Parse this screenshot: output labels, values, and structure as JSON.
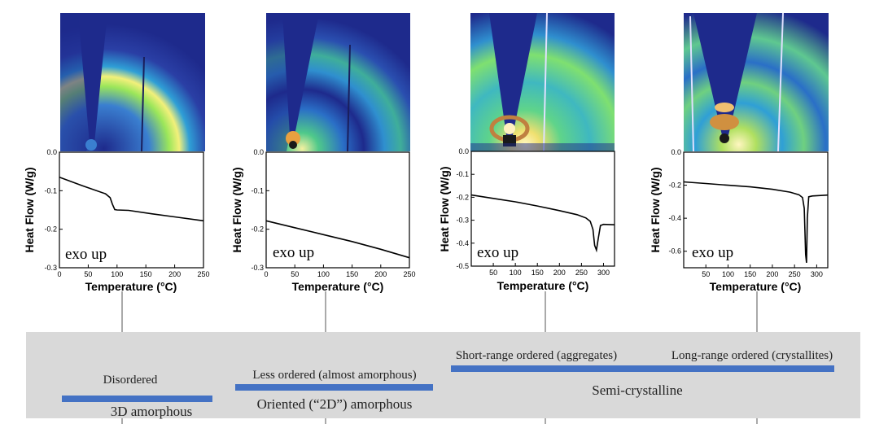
{
  "chart_data": [
    {
      "type": "line",
      "panel": "1",
      "xlabel": "Temperature (°C)",
      "ylabel": "Heat Flow (W/g)",
      "xlim": [
        0,
        250
      ],
      "ylim": [
        -0.3,
        0.0
      ],
      "xticks": [
        "0",
        "50",
        "100",
        "150",
        "200",
        "250"
      ],
      "yticks": [
        "0.0",
        "-0.1",
        "-0.2",
        "-0.3"
      ],
      "annotation": "exo up",
      "x": [
        0,
        40,
        80,
        88,
        92,
        96,
        100,
        120,
        160,
        200,
        250
      ],
      "y": [
        -0.065,
        -0.087,
        -0.108,
        -0.118,
        -0.135,
        -0.149,
        -0.15,
        -0.151,
        -0.16,
        -0.168,
        -0.178
      ]
    },
    {
      "type": "line",
      "panel": "2",
      "xlabel": "Temperature (°C)",
      "ylabel": "Heat Flow (W/g)",
      "xlim": [
        0,
        250
      ],
      "ylim": [
        -0.3,
        0.0
      ],
      "xticks": [
        "0",
        "50",
        "100",
        "150",
        "200",
        "250"
      ],
      "yticks": [
        "0.0",
        "-0.1",
        "-0.2",
        "-0.3"
      ],
      "annotation": "exo up",
      "x": [
        0,
        50,
        100,
        150,
        200,
        250
      ],
      "y": [
        -0.178,
        -0.196,
        -0.214,
        -0.232,
        -0.252,
        -0.274
      ]
    },
    {
      "type": "line",
      "panel": "3",
      "xlabel": "Temperature (°C)",
      "ylabel": "Heat Flow (W/g)",
      "xlim": [
        0,
        325
      ],
      "ylim": [
        -0.5,
        0.0
      ],
      "xticks": [
        "50",
        "100",
        "150",
        "200",
        "250",
        "300"
      ],
      "yticks": [
        "0.0",
        "-0.1",
        "-0.2",
        "-0.3",
        "-0.4",
        "-0.5"
      ],
      "annotation": "exo up",
      "x": [
        0,
        50,
        100,
        150,
        200,
        240,
        260,
        270,
        276,
        280,
        284,
        288,
        293,
        300,
        325
      ],
      "y": [
        -0.19,
        -0.205,
        -0.22,
        -0.238,
        -0.258,
        -0.276,
        -0.29,
        -0.305,
        -0.34,
        -0.41,
        -0.43,
        -0.38,
        -0.323,
        -0.318,
        -0.32
      ]
    },
    {
      "type": "line",
      "panel": "4",
      "xlabel": "Temperature (°C)",
      "ylabel": "Heat Flow (W/g)",
      "xlim": [
        0,
        325
      ],
      "ylim": [
        -0.7,
        0.0
      ],
      "xticks": [
        "50",
        "100",
        "150",
        "200",
        "250",
        "300"
      ],
      "yticks": [
        "0.0",
        "-0.2",
        "-0.4",
        "-0.6"
      ],
      "annotation": "exo up",
      "x": [
        0,
        50,
        100,
        150,
        200,
        240,
        260,
        268,
        272,
        275,
        277,
        279,
        282,
        290,
        325
      ],
      "y": [
        -0.18,
        -0.19,
        -0.2,
        -0.21,
        -0.225,
        -0.242,
        -0.258,
        -0.275,
        -0.34,
        -0.62,
        -0.67,
        -0.4,
        -0.27,
        -0.265,
        -0.26
      ]
    }
  ],
  "ordering_scale": {
    "labels": {
      "disordered": "Disordered",
      "amorphous_3d": "3D amorphous",
      "less_ordered": "Less ordered (almost amorphous)",
      "oriented_amorphous": "Oriented (“2D”) amorphous",
      "short_range": "Short-range ordered (aggregates)",
      "long_range": "Long-range ordered (crystallites)",
      "semi_crystalline": "Semi-crystalline"
    }
  },
  "colors": {
    "bar": "#4472c4",
    "band": "#d9d9d9",
    "xrd_background": "#1e2a8c",
    "curve": "#000000"
  }
}
